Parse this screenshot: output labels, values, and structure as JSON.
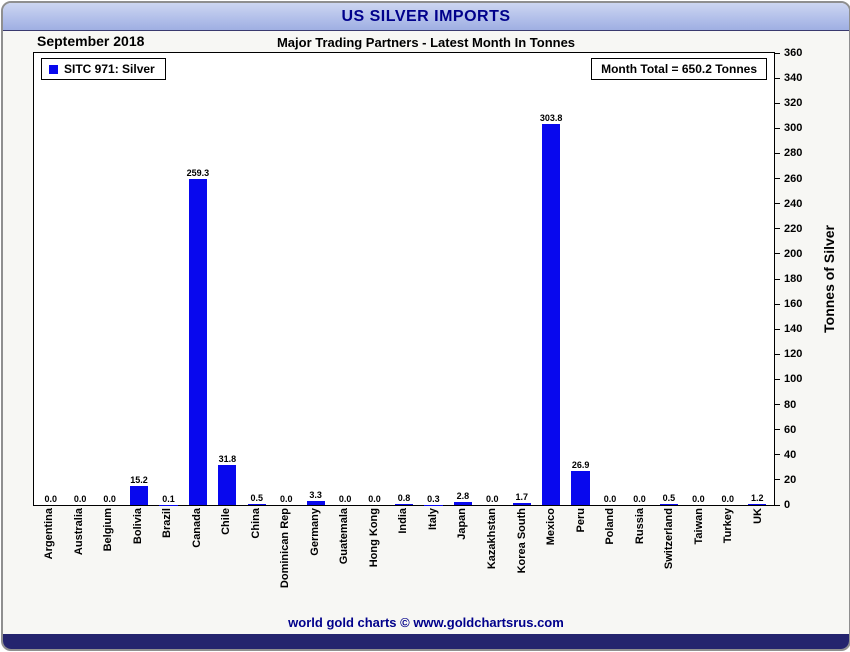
{
  "header": {
    "title": "US SILVER IMPORTS"
  },
  "subheader": {
    "date": "September 2018",
    "title": "Major Trading Partners - Latest Month In Tonnes"
  },
  "legend": {
    "label": "SITC 971: Silver"
  },
  "annotations": {
    "month_total": "Month Total = 650.2 Tonnes"
  },
  "footer": {
    "credit": "world gold charts © www.goldchartsrus.com"
  },
  "colors": {
    "bar": "#0808ee",
    "navy_text": "#00008b",
    "bottom_band": "#24246e",
    "header_gradient_top": "#cdd6f1",
    "header_gradient_bottom": "#9fafe2"
  },
  "chart_data": {
    "type": "bar",
    "title": "US SILVER IMPORTS",
    "subtitle": "Major Trading Partners - Latest Month In Tonnes",
    "period": "September 2018",
    "series_name": "SITC 971: Silver",
    "month_total": 650.2,
    "categories": [
      "Argentina",
      "Australia",
      "Belgium",
      "Bolivia",
      "Brazil",
      "Canada",
      "Chile",
      "China",
      "Dominican Rep",
      "Germany",
      "Guatemala",
      "Hong Kong",
      "India",
      "Italy",
      "Japan",
      "Kazakhstan",
      "Korea South",
      "Mexico",
      "Peru",
      "Poland",
      "Russia",
      "Switzerland",
      "Taiwan",
      "Turkey",
      "UK"
    ],
    "values": [
      0.0,
      0.0,
      0.0,
      15.2,
      0.1,
      259.3,
      31.8,
      0.5,
      0.0,
      3.3,
      0.0,
      0.0,
      0.8,
      0.3,
      2.8,
      0.0,
      1.7,
      303.8,
      26.9,
      0.0,
      0.0,
      0.5,
      0.0,
      0.0,
      1.2
    ],
    "xlabel": "",
    "ylabel": "Tonnes of Silver",
    "ylim": [
      0,
      360
    ],
    "ytick_step": 20,
    "grid": false,
    "legend_position": "top-left",
    "bar_color": "#0808ee"
  }
}
